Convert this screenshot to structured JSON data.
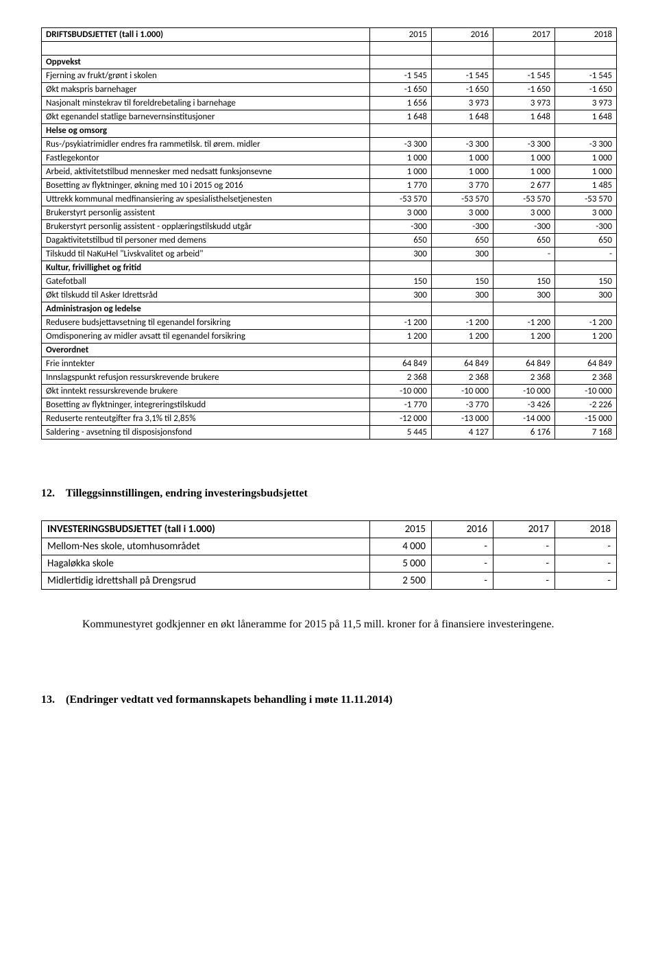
{
  "table1": {
    "title": "DRIFTSBUDSJETTET (tall i 1.000)",
    "years": [
      "2015",
      "2016",
      "2017",
      "2018"
    ],
    "sections": [
      {
        "name": "Oppvekst",
        "rows": [
          {
            "label": "Fjerning av frukt/grønt i skolen",
            "vals": [
              "-1 545",
              "-1 545",
              "-1 545",
              "-1 545"
            ]
          },
          {
            "label": "Økt makspris barnehager",
            "vals": [
              "-1 650",
              "-1 650",
              "-1 650",
              "-1 650"
            ]
          },
          {
            "label": "Nasjonalt minstekrav til foreldrebetaling i barnehage",
            "vals": [
              "1 656",
              "3 973",
              "3 973",
              "3 973"
            ]
          },
          {
            "label": "Økt egenandel statlige barnevernsinstitusjoner",
            "vals": [
              "1 648",
              "1 648",
              "1 648",
              "1 648"
            ]
          }
        ]
      },
      {
        "name": "Helse og omsorg",
        "rows": [
          {
            "label": "Rus-/psykiatrimidler endres fra rammetilsk. til ørem. midler",
            "vals": [
              "-3 300",
              "-3 300",
              "-3 300",
              "-3 300"
            ]
          },
          {
            "label": "Fastlegekontor",
            "vals": [
              "1 000",
              "1 000",
              "1 000",
              "1 000"
            ]
          },
          {
            "label": "Arbeid, aktivitetstilbud mennesker med nedsatt funksjonsevne",
            "vals": [
              "1 000",
              "1 000",
              "1 000",
              "1 000"
            ]
          },
          {
            "label": "Bosetting av flyktninger, økning med 10 i 2015 og 2016",
            "vals": [
              "1 770",
              "3 770",
              "2 677",
              "1 485"
            ]
          },
          {
            "label": "Uttrekk kommunal medfinansiering av spesialisthelsetjenesten",
            "vals": [
              "-53 570",
              "-53 570",
              "-53 570",
              "-53 570"
            ]
          },
          {
            "label": "Brukerstyrt personlig assistent",
            "vals": [
              "3 000",
              "3 000",
              "3 000",
              "3 000"
            ]
          },
          {
            "label": "Brukerstyrt personlig assistent - opplæringstilskudd utgår",
            "vals": [
              "-300",
              "-300",
              "-300",
              "-300"
            ]
          },
          {
            "label": "Dagaktivitetstilbud til personer med demens",
            "vals": [
              "650",
              "650",
              "650",
              "650"
            ]
          },
          {
            "label": "Tilskudd til NaKuHel \"Livskvalitet og arbeid\"",
            "vals": [
              "300",
              "300",
              "-",
              "-"
            ]
          }
        ]
      },
      {
        "name": "Kultur, frivillighet og fritid",
        "rows": [
          {
            "label": "Gatefotball",
            "vals": [
              "150",
              "150",
              "150",
              "150"
            ]
          },
          {
            "label": "Økt tilskudd til Asker Idrettsråd",
            "vals": [
              "300",
              "300",
              "300",
              "300"
            ]
          }
        ]
      },
      {
        "name": "Administrasjon og ledelse",
        "rows": [
          {
            "label": "Redusere budsjettavsetning til egenandel forsikring",
            "vals": [
              "-1 200",
              "-1 200",
              "-1 200",
              "-1 200"
            ]
          },
          {
            "label": "Omdisponering av midler avsatt til egenandel forsikring",
            "vals": [
              "1 200",
              "1 200",
              "1 200",
              "1 200"
            ]
          }
        ]
      },
      {
        "name": "Overordnet",
        "rows": [
          {
            "label": "Frie inntekter",
            "vals": [
              "64 849",
              "64 849",
              "64 849",
              "64 849"
            ]
          },
          {
            "label": "Innslagspunkt refusjon ressurskrevende brukere",
            "vals": [
              "2 368",
              "2 368",
              "2 368",
              "2 368"
            ]
          },
          {
            "label": "Økt inntekt ressurskrevende brukere",
            "vals": [
              "-10 000",
              "-10 000",
              "-10 000",
              "-10 000"
            ]
          },
          {
            "label": "Bosetting av flyktninger, integreringstilskudd",
            "vals": [
              "-1 770",
              "-3 770",
              "-3 426",
              "-2 226"
            ]
          },
          {
            "label": "Reduserte renteutgifter fra 3,1% til 2,85%",
            "vals": [
              "-12 000",
              "-13 000",
              "-14 000",
              "-15 000"
            ]
          },
          {
            "label": "Saldering - avsetning til disposisjonsfond",
            "vals": [
              "5 445",
              "4 127",
              "6 176",
              "7 168"
            ]
          }
        ]
      }
    ]
  },
  "section12": {
    "number": "12.",
    "title": "Tilleggsinnstillingen, endring investeringsbudsjettet"
  },
  "table2": {
    "title": "INVESTERINGSBUDSJETTET (tall i 1.000)",
    "years": [
      "2015",
      "2016",
      "2017",
      "2018"
    ],
    "rows": [
      {
        "label": "Mellom-Nes skole, utomhusområdet",
        "vals": [
          "4 000",
          "-",
          "-",
          "-"
        ]
      },
      {
        "label": "Hagaløkka skole",
        "vals": [
          "5 000",
          "-",
          "-",
          "-"
        ]
      },
      {
        "label": "Midlertidig idrettshall på Drengsrud",
        "vals": [
          "2 500",
          "-",
          "-",
          "-"
        ]
      }
    ]
  },
  "body_text": "Kommunestyret godkjenner en økt låneramme for 2015 på 11,5 mill. kroner for å finansiere investeringene.",
  "section13": {
    "number": "13.",
    "title": "(Endringer vedtatt ved formannskapets behandling i møte 11.11.2014)"
  }
}
